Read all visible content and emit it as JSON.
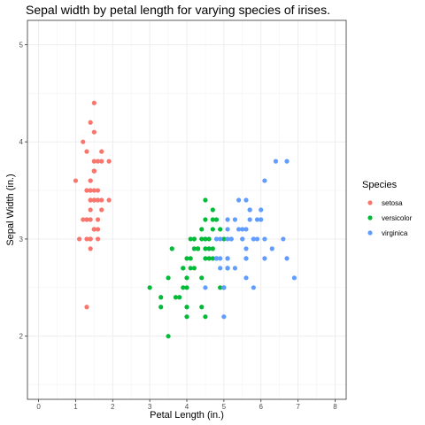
{
  "chart_data": {
    "type": "scatter",
    "title": "Sepal width by petal length for varying species of irises.",
    "xlabel": "Petal Length (in.)",
    "ylabel": "Sepal Width (in.)",
    "xlim": [
      -0.3,
      8.3
    ],
    "ylim": [
      1.35,
      5.25
    ],
    "xticks": [
      0,
      1,
      2,
      3,
      4,
      5,
      6,
      7,
      8
    ],
    "yticks": [
      2,
      3,
      4,
      5
    ],
    "grid": true,
    "legend": {
      "title": "Species",
      "placement": "right"
    },
    "series": [
      {
        "name": "setosa",
        "color": "#F8766D",
        "x": [
          1.4,
          1.4,
          1.3,
          1.5,
          1.4,
          1.7,
          1.4,
          1.5,
          1.4,
          1.5,
          1.5,
          1.6,
          1.4,
          1.1,
          1.2,
          1.5,
          1.3,
          1.4,
          1.7,
          1.5,
          1.7,
          1.5,
          1.0,
          1.7,
          1.9,
          1.6,
          1.6,
          1.5,
          1.4,
          1.6,
          1.6,
          1.5,
          1.5,
          1.4,
          1.5,
          1.2,
          1.3,
          1.4,
          1.3,
          1.5,
          1.3,
          1.3,
          1.3,
          1.6,
          1.9,
          1.4,
          1.6,
          1.4,
          1.5,
          1.4
        ],
        "y": [
          3.5,
          3.0,
          3.2,
          3.1,
          3.6,
          3.9,
          3.4,
          3.4,
          2.9,
          3.1,
          3.7,
          3.4,
          3.0,
          3.0,
          4.0,
          4.4,
          3.9,
          3.5,
          3.8,
          3.8,
          3.4,
          3.7,
          3.6,
          3.3,
          3.4,
          3.0,
          3.4,
          3.5,
          3.4,
          3.2,
          3.1,
          3.4,
          4.1,
          4.2,
          3.1,
          3.2,
          3.5,
          3.6,
          3.0,
          3.4,
          3.5,
          2.3,
          3.2,
          3.5,
          3.8,
          3.0,
          3.8,
          3.2,
          3.7,
          3.3
        ]
      },
      {
        "name": "versicolor",
        "color": "#00BA38",
        "x": [
          4.7,
          4.5,
          4.9,
          4.0,
          4.6,
          4.5,
          4.7,
          3.3,
          4.6,
          3.9,
          3.5,
          4.2,
          4.0,
          4.7,
          3.6,
          4.4,
          4.5,
          4.1,
          4.5,
          3.9,
          4.8,
          4.0,
          4.9,
          4.7,
          4.3,
          4.4,
          4.8,
          5.0,
          4.5,
          3.5,
          3.8,
          3.7,
          3.9,
          5.1,
          4.5,
          4.5,
          4.7,
          4.4,
          4.1,
          4.0,
          4.4,
          4.6,
          4.0,
          3.3,
          4.2,
          4.2,
          4.2,
          4.3,
          3.0,
          4.1
        ],
        "y": [
          3.2,
          3.2,
          3.1,
          2.3,
          2.8,
          2.8,
          3.3,
          2.4,
          2.9,
          2.7,
          2.0,
          3.0,
          2.2,
          2.9,
          2.9,
          3.1,
          3.0,
          2.7,
          2.2,
          2.5,
          3.2,
          2.8,
          2.5,
          2.8,
          2.9,
          3.0,
          2.8,
          3.0,
          2.9,
          2.6,
          2.4,
          2.4,
          2.7,
          2.7,
          3.0,
          3.4,
          3.1,
          2.3,
          3.0,
          2.5,
          2.6,
          3.0,
          2.6,
          2.3,
          2.7,
          3.0,
          2.9,
          2.9,
          2.5,
          2.8
        ]
      },
      {
        "name": "virginica",
        "color": "#619CFF",
        "x": [
          6.0,
          5.1,
          5.9,
          5.6,
          5.8,
          6.6,
          4.5,
          6.3,
          5.8,
          6.1,
          5.1,
          5.3,
          5.5,
          5.0,
          5.1,
          5.3,
          5.5,
          6.7,
          6.9,
          5.0,
          5.7,
          4.9,
          6.7,
          4.9,
          5.7,
          6.0,
          4.8,
          4.9,
          5.6,
          5.8,
          6.1,
          6.4,
          5.6,
          5.1,
          5.6,
          6.1,
          5.6,
          5.5,
          4.8,
          5.4,
          5.6,
          5.1,
          5.1,
          5.9,
          5.7,
          5.2,
          5.0,
          5.2,
          5.4,
          5.1
        ],
        "y": [
          3.3,
          2.7,
          3.0,
          2.9,
          3.0,
          3.0,
          2.5,
          2.9,
          2.5,
          3.6,
          3.2,
          2.7,
          3.0,
          2.5,
          2.8,
          3.2,
          3.0,
          3.8,
          2.6,
          2.2,
          3.2,
          2.8,
          2.8,
          2.7,
          3.3,
          3.2,
          2.8,
          3.0,
          2.8,
          3.0,
          2.8,
          3.8,
          2.8,
          2.8,
          2.6,
          3.0,
          3.4,
          3.1,
          3.0,
          3.1,
          3.1,
          3.1,
          2.7,
          3.2,
          3.3,
          3.0,
          2.5,
          3.0,
          3.4,
          3.0
        ]
      }
    ]
  }
}
